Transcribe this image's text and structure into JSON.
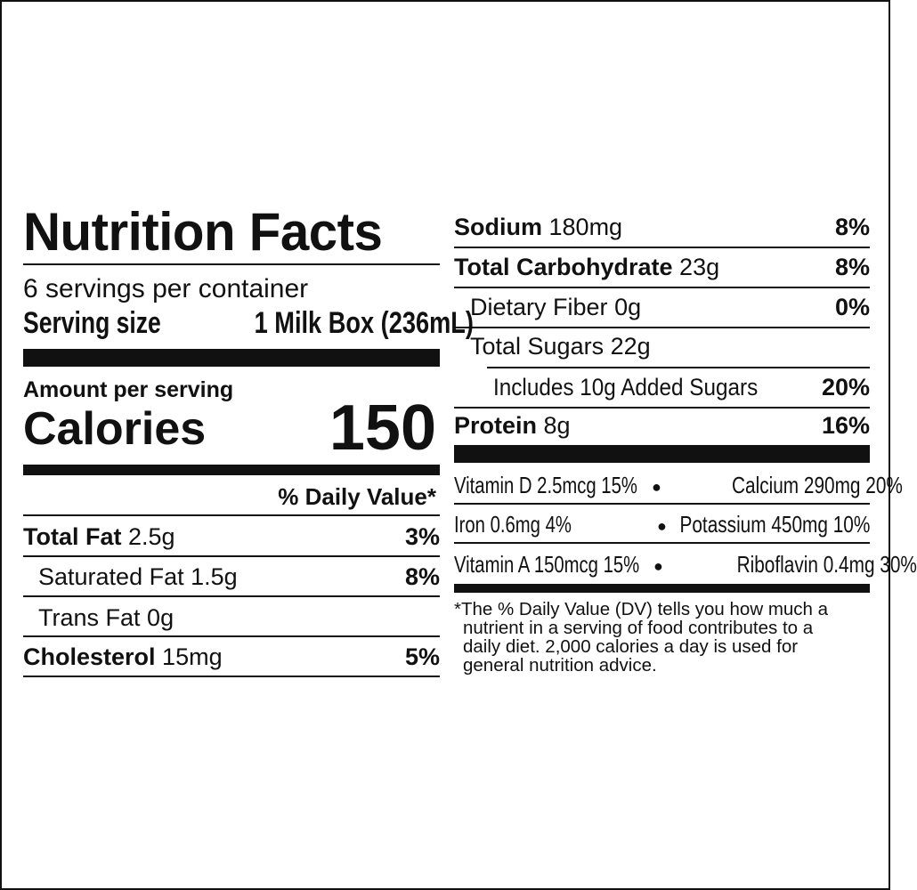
{
  "title": "Nutrition Facts",
  "servings_per_container": "6 servings per container",
  "serving_size_label": "Serving size",
  "serving_size_value": "1 Milk Box (236mL)",
  "amount_per_serving": "Amount per serving",
  "calories_label": "Calories",
  "calories_value": "150",
  "daily_value_header": "% Daily Value*",
  "nutrients": [
    {
      "name": "Total Fat",
      "amount": "2.5g",
      "dv": "3%"
    },
    {
      "name": "Saturated Fat",
      "amount": "1.5g",
      "dv": "8%"
    },
    {
      "name": "Trans Fat",
      "amount": "0g",
      "dv": ""
    },
    {
      "name": "Cholesterol",
      "amount": "15mg",
      "dv": "5%"
    },
    {
      "name": "Sodium",
      "amount": "180mg",
      "dv": "8%"
    },
    {
      "name": "Total Carbohydrate",
      "amount": "23g",
      "dv": "8%"
    },
    {
      "name": "Dietary Fiber",
      "amount": "0g",
      "dv": "0%"
    },
    {
      "name": "Total Sugars",
      "amount": "22g",
      "dv": ""
    },
    {
      "name": "Includes 10g Added Sugars",
      "amount": "",
      "dv": "20%"
    },
    {
      "name": "Protein",
      "amount": "8g",
      "dv": "16%"
    }
  ],
  "vitamins": [
    {
      "left": "Vitamin D 2.5mcg 15%",
      "right": "Calcium 290mg 20%"
    },
    {
      "left": "Iron 0.6mg 4%",
      "right": "Potassium 450mg 10%"
    },
    {
      "left": "Vitamin A 150mcg 15%",
      "right": "Riboflavin 0.4mg 30%"
    }
  ],
  "bullet": "●",
  "footnote": "*The % Daily Value (DV) tells you how much a nutrient in a serving of food contributes to a daily diet. 2,000 calories a day is used for general nutrition advice."
}
